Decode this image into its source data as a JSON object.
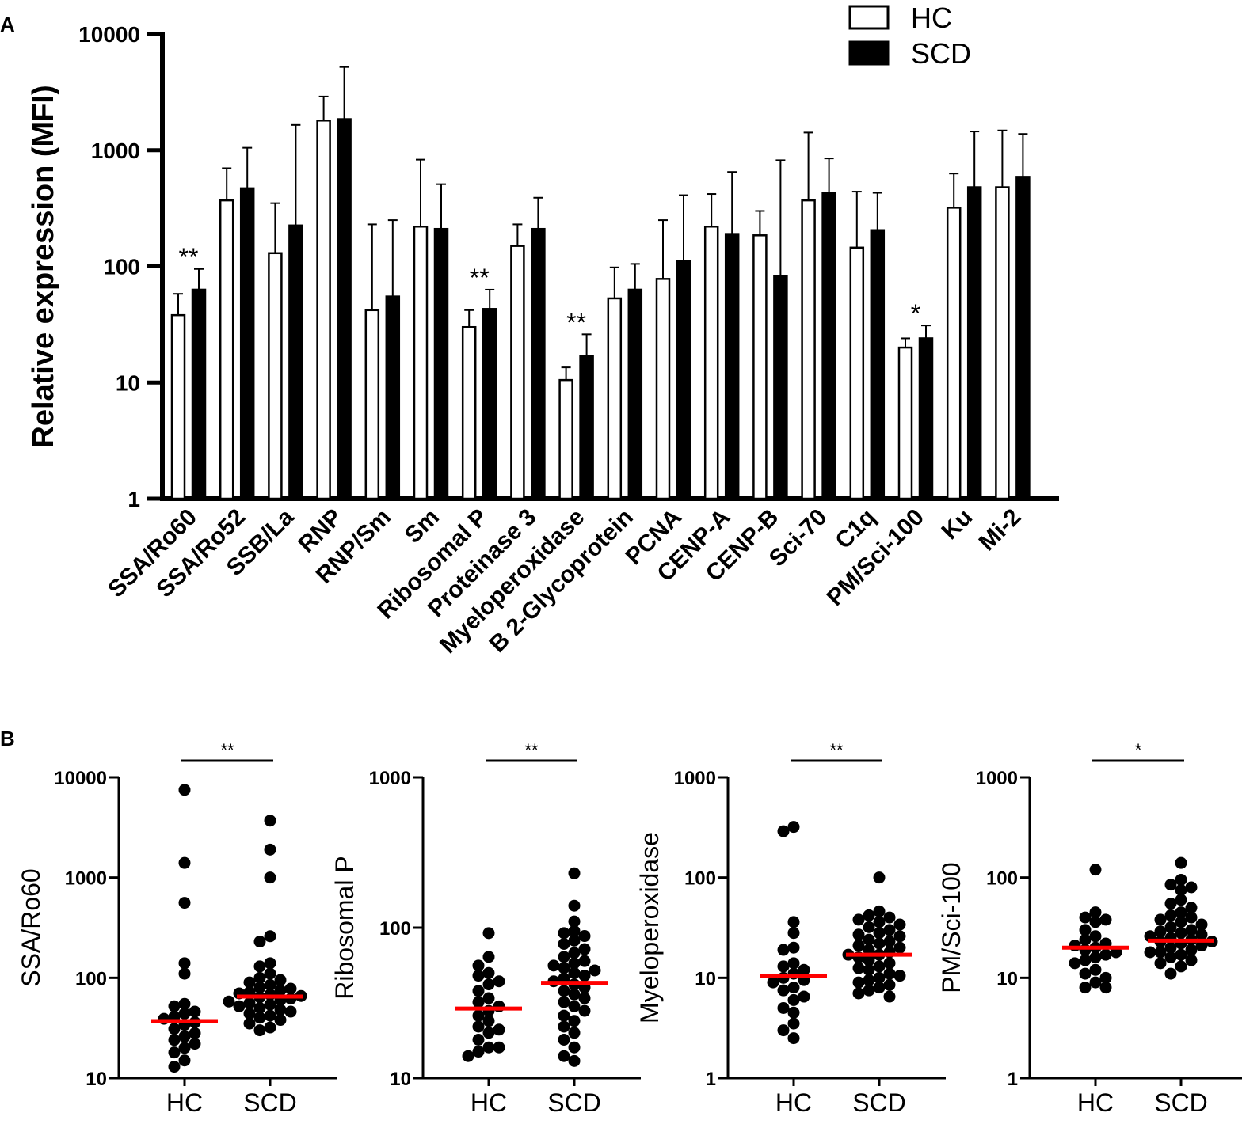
{
  "chart_data": [
    {
      "panel": "A",
      "type": "bar",
      "yscale": "log",
      "ylim": [
        1,
        10000
      ],
      "ylabel": "Relative expression (MFI)",
      "yticks": [
        "1",
        "10",
        "100",
        "1000",
        "10000"
      ],
      "categories": [
        "SSA/Ro60",
        "SSA/Ro52",
        "SSB/La",
        "RNP",
        "RNP/Sm",
        "Sm",
        "Ribosomal P",
        "Proteinase 3",
        "Myeloperoxidase",
        "B 2-Glycoprotein",
        "PCNA",
        "CENP-A",
        "CENP-B",
        "Sci-70",
        "C1q",
        "PM/Sci-100",
        "Ku",
        "Mi-2"
      ],
      "series": [
        {
          "name": "HC",
          "fill": "#ffffff",
          "values": [
            38,
            370,
            130,
            1800,
            42,
            220,
            30,
            150,
            10.5,
            53,
            78,
            220,
            185,
            370,
            145,
            20,
            320,
            480
          ],
          "errors": [
            58,
            700,
            350,
            2900,
            230,
            830,
            42,
            230,
            13.5,
            98,
            250,
            420,
            300,
            1420,
            440,
            24,
            630,
            1480
          ]
        },
        {
          "name": "SCD",
          "fill": "#000000",
          "values": [
            63,
            470,
            225,
            1850,
            55,
            210,
            43,
            210,
            17,
            63,
            112,
            190,
            82,
            430,
            205,
            24,
            480,
            590
          ],
          "errors": [
            95,
            1050,
            1650,
            5200,
            250,
            510,
            63,
            390,
            26,
            105,
            410,
            650,
            820,
            850,
            430,
            31,
            1450,
            1380
          ]
        }
      ],
      "significance": [
        {
          "category": "SSA/Ro60",
          "label": "**"
        },
        {
          "category": "Ribosomal P",
          "label": "**"
        },
        {
          "category": "Myeloperoxidase",
          "label": "**"
        },
        {
          "category": "PM/Sci-100",
          "label": "*"
        }
      ],
      "legend": {
        "position": "top-right",
        "items": [
          "HC",
          "SCD"
        ]
      }
    },
    {
      "panel": "B",
      "type": "scatter",
      "subplots": [
        {
          "ylabel": "SSA/Ro60",
          "yscale": "log",
          "ylim": [
            10,
            10000
          ],
          "yticks": [
            "10",
            "100",
            "1000",
            "10000"
          ],
          "categories": [
            "HC",
            "SCD"
          ],
          "significance": "**",
          "median_color": "#ff0000",
          "medians": [
            37,
            65
          ],
          "groups": [
            {
              "name": "HC",
              "values": [
                7500,
                1400,
                560,
                140,
                110,
                55,
                52,
                46,
                44,
                41,
                39,
                36,
                34,
                31,
                28,
                26,
                24,
                22,
                20,
                18,
                15,
                13
              ]
            },
            {
              "name": "SCD",
              "values": [
                3700,
                1900,
                1000,
                260,
                230,
                140,
                130,
                110,
                100,
                95,
                90,
                85,
                80,
                78,
                75,
                72,
                70,
                68,
                66,
                64,
                62,
                60,
                58,
                56,
                54,
                52,
                50,
                48,
                46,
                44,
                42,
                40,
                38,
                35,
                32,
                30
              ]
            }
          ]
        },
        {
          "ylabel": "Ribosomal P",
          "yscale": "log",
          "ylim": [
            10,
            1000
          ],
          "yticks": [
            "10",
            "100",
            "1000"
          ],
          "categories": [
            "HC",
            "SCD"
          ],
          "significance": "**",
          "median_color": "#ff0000",
          "medians": [
            29,
            43
          ],
          "groups": [
            {
              "name": "HC",
              "values": [
                92,
                64,
                56,
                50,
                48,
                44,
                42,
                38,
                34,
                32,
                30,
                28,
                26,
                24,
                22,
                21,
                20,
                18,
                16,
                16,
                15,
                14
              ]
            },
            {
              "name": "SCD",
              "values": [
                230,
                140,
                110,
                95,
                92,
                88,
                82,
                78,
                72,
                68,
                64,
                60,
                58,
                56,
                54,
                52,
                50,
                48,
                46,
                44,
                42,
                40,
                38,
                36,
                34,
                32,
                30,
                28,
                26,
                24,
                22,
                20,
                18,
                16,
                14,
                13
              ]
            }
          ]
        },
        {
          "ylabel": "Myeloperoxidase",
          "yscale": "log",
          "ylim": [
            1,
            1000
          ],
          "yticks": [
            "1",
            "10",
            "100",
            "1000"
          ],
          "categories": [
            "HC",
            "SCD"
          ],
          "significance": "**",
          "median_color": "#ff0000",
          "medians": [
            10.5,
            17
          ],
          "groups": [
            {
              "name": "HC",
              "values": [
                320,
                290,
                36,
                28,
                20,
                19,
                14,
                13,
                12,
                11,
                10,
                9.5,
                9,
                8,
                7.5,
                6.5,
                6,
                5,
                4.5,
                3.5,
                3,
                2.5
              ]
            },
            {
              "name": "SCD",
              "values": [
                100,
                46,
                42,
                40,
                38,
                36,
                34,
                32,
                30,
                28,
                27,
                26,
                24,
                23,
                22,
                21,
                20,
                19,
                18,
                17,
                17,
                16,
                15,
                14,
                13,
                12.5,
                12,
                11,
                10.5,
                10,
                9.5,
                9,
                8.5,
                8,
                7.5,
                7,
                6.5
              ]
            }
          ]
        },
        {
          "ylabel": "PM/Sci-100",
          "yscale": "log",
          "ylim": [
            1,
            1000
          ],
          "yticks": [
            "1",
            "10",
            "100",
            "1000"
          ],
          "categories": [
            "HC",
            "SCD"
          ],
          "significance": "*",
          "median_color": "#ff0000",
          "medians": [
            20,
            23.5
          ],
          "groups": [
            {
              "name": "HC",
              "values": [
                120,
                45,
                40,
                38,
                36,
                30,
                26,
                24,
                22,
                21,
                20,
                19,
                18,
                17,
                16,
                15,
                14,
                12,
                11,
                10,
                9,
                8,
                8
              ]
            },
            {
              "name": "SCD",
              "values": [
                140,
                95,
                85,
                80,
                75,
                60,
                55,
                50,
                45,
                42,
                40,
                38,
                36,
                34,
                32,
                30,
                29,
                28,
                27,
                26,
                25,
                24,
                23,
                23,
                22,
                21,
                20,
                19,
                18,
                18,
                17,
                16,
                15,
                14,
                13,
                11
              ]
            }
          ]
        }
      ]
    }
  ],
  "panel_labels": {
    "a": "A",
    "b": "B"
  }
}
